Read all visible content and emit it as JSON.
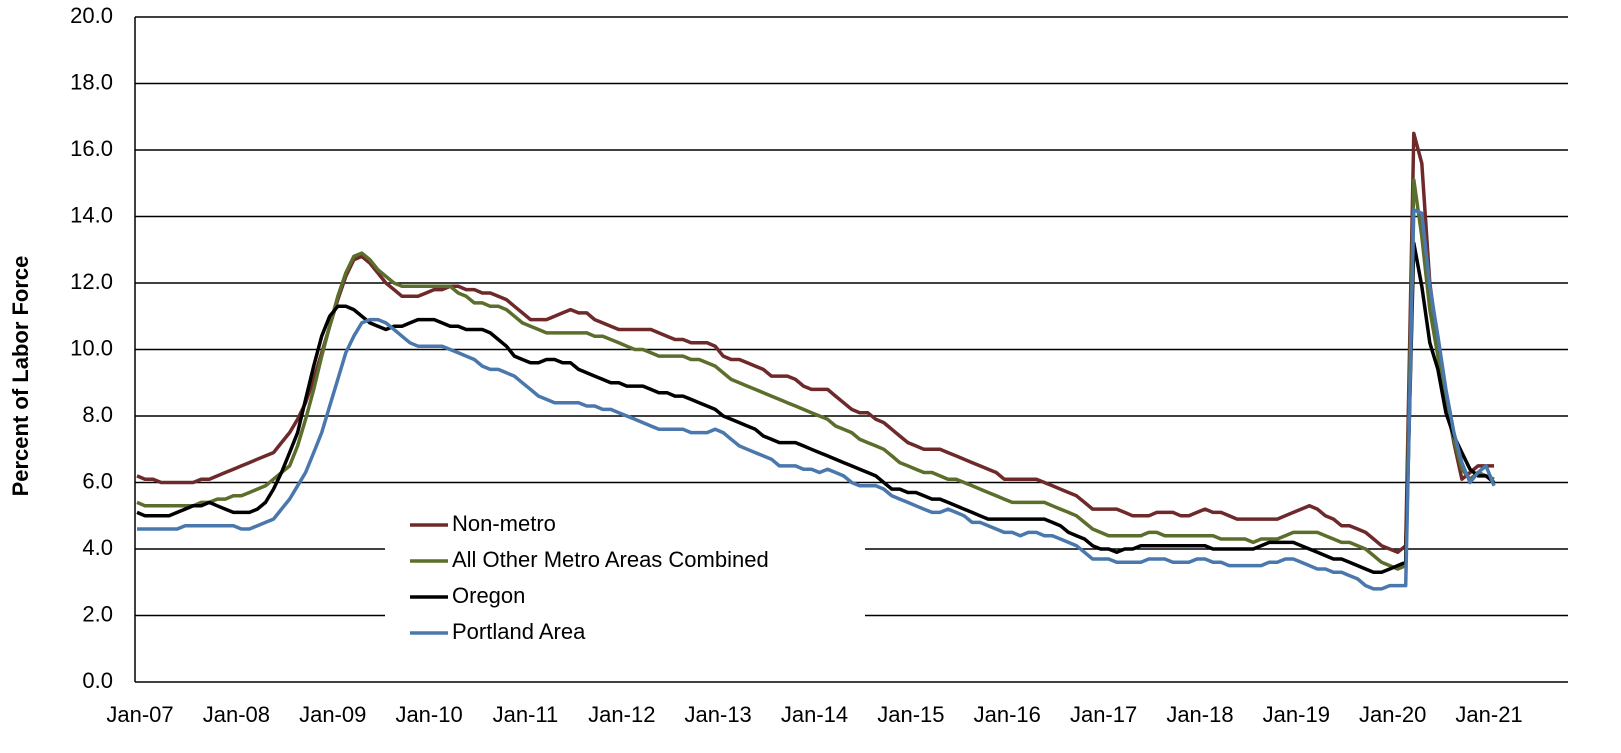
{
  "chart_data": {
    "type": "line",
    "y_label": "Percent of Labor Force",
    "categories": [
      "Jan-07",
      null,
      null,
      null,
      null,
      null,
      null,
      null,
      null,
      null,
      null,
      null,
      "Jan-08",
      null,
      null,
      null,
      null,
      null,
      null,
      null,
      null,
      null,
      null,
      null,
      "Jan-09",
      null,
      null,
      null,
      null,
      null,
      null,
      null,
      null,
      null,
      null,
      null,
      "Jan-10",
      null,
      null,
      null,
      null,
      null,
      null,
      null,
      null,
      null,
      null,
      null,
      "Jan-11",
      null,
      null,
      null,
      null,
      null,
      null,
      null,
      null,
      null,
      null,
      null,
      "Jan-12",
      null,
      null,
      null,
      null,
      null,
      null,
      null,
      null,
      null,
      null,
      null,
      "Jan-13",
      null,
      null,
      null,
      null,
      null,
      null,
      null,
      null,
      null,
      null,
      null,
      "Jan-14",
      null,
      null,
      null,
      null,
      null,
      null,
      null,
      null,
      null,
      null,
      null,
      "Jan-15",
      null,
      null,
      null,
      null,
      null,
      null,
      null,
      null,
      null,
      null,
      null,
      "Jan-16",
      null,
      null,
      null,
      null,
      null,
      null,
      null,
      null,
      null,
      null,
      null,
      "Jan-17",
      null,
      null,
      null,
      null,
      null,
      null,
      null,
      null,
      null,
      null,
      null,
      "Jan-18",
      null,
      null,
      null,
      null,
      null,
      null,
      null,
      null,
      null,
      null,
      null,
      "Jan-19",
      null,
      null,
      null,
      null,
      null,
      null,
      null,
      null,
      null,
      null,
      null,
      "Jan-20",
      null,
      null,
      null,
      null,
      null,
      null,
      null,
      null,
      null,
      null,
      null,
      "Jan-21",
      null
    ],
    "series": [
      {
        "name": "Non-metro",
        "color": "#6e2a2a",
        "values": [
          6.2,
          6.1,
          6.1,
          6.0,
          6.0,
          6.0,
          6.0,
          6.0,
          6.1,
          6.1,
          6.2,
          6.3,
          6.4,
          6.5,
          6.6,
          6.7,
          6.8,
          6.9,
          7.2,
          7.5,
          7.9,
          8.4,
          9.1,
          9.9,
          10.7,
          11.5,
          12.2,
          12.7,
          12.8,
          12.6,
          12.3,
          12.0,
          11.8,
          11.6,
          11.6,
          11.6,
          11.7,
          11.8,
          11.8,
          11.9,
          11.9,
          11.8,
          11.8,
          11.7,
          11.7,
          11.6,
          11.5,
          11.3,
          11.1,
          10.9,
          10.9,
          10.9,
          11.0,
          11.1,
          11.2,
          11.1,
          11.1,
          10.9,
          10.8,
          10.7,
          10.6,
          10.6,
          10.6,
          10.6,
          10.6,
          10.5,
          10.4,
          10.3,
          10.3,
          10.2,
          10.2,
          10.2,
          10.1,
          9.8,
          9.7,
          9.7,
          9.6,
          9.5,
          9.4,
          9.2,
          9.2,
          9.2,
          9.1,
          8.9,
          8.8,
          8.8,
          8.8,
          8.6,
          8.4,
          8.2,
          8.1,
          8.1,
          7.9,
          7.8,
          7.6,
          7.4,
          7.2,
          7.1,
          7.0,
          7.0,
          7.0,
          6.9,
          6.8,
          6.7,
          6.6,
          6.5,
          6.4,
          6.3,
          6.1,
          6.1,
          6.1,
          6.1,
          6.1,
          6.0,
          5.9,
          5.8,
          5.7,
          5.6,
          5.4,
          5.2,
          5.2,
          5.2,
          5.2,
          5.1,
          5.0,
          5.0,
          5.0,
          5.1,
          5.1,
          5.1,
          5.0,
          5.0,
          5.1,
          5.2,
          5.1,
          5.1,
          5.0,
          4.9,
          4.9,
          4.9,
          4.9,
          4.9,
          4.9,
          5.0,
          5.1,
          5.2,
          5.3,
          5.2,
          5.0,
          4.9,
          4.7,
          4.7,
          4.6,
          4.5,
          4.3,
          4.1,
          4.0,
          3.9,
          4.1,
          16.5,
          15.6,
          12.0,
          10.2,
          8.5,
          7.2,
          6.1,
          6.3,
          6.5,
          6.5,
          6.5
        ]
      },
      {
        "name": "All Other Metro Areas Combined",
        "color": "#5b6e2b",
        "values": [
          5.4,
          5.3,
          5.3,
          5.3,
          5.3,
          5.3,
          5.3,
          5.3,
          5.4,
          5.4,
          5.5,
          5.5,
          5.6,
          5.6,
          5.7,
          5.8,
          5.9,
          6.1,
          6.3,
          6.5,
          7.1,
          7.9,
          8.8,
          9.8,
          10.7,
          11.6,
          12.3,
          12.8,
          12.9,
          12.7,
          12.4,
          12.2,
          12.0,
          11.9,
          11.9,
          11.9,
          11.9,
          11.9,
          11.9,
          11.9,
          11.7,
          11.6,
          11.4,
          11.4,
          11.3,
          11.3,
          11.2,
          11.0,
          10.8,
          10.7,
          10.6,
          10.5,
          10.5,
          10.5,
          10.5,
          10.5,
          10.5,
          10.4,
          10.4,
          10.3,
          10.2,
          10.1,
          10.0,
          10.0,
          9.9,
          9.8,
          9.8,
          9.8,
          9.8,
          9.7,
          9.7,
          9.6,
          9.5,
          9.3,
          9.1,
          9.0,
          8.9,
          8.8,
          8.7,
          8.6,
          8.5,
          8.4,
          8.3,
          8.2,
          8.1,
          8.0,
          7.9,
          7.7,
          7.6,
          7.5,
          7.3,
          7.2,
          7.1,
          7.0,
          6.8,
          6.6,
          6.5,
          6.4,
          6.3,
          6.3,
          6.2,
          6.1,
          6.1,
          6.0,
          5.9,
          5.8,
          5.7,
          5.6,
          5.5,
          5.4,
          5.4,
          5.4,
          5.4,
          5.4,
          5.3,
          5.2,
          5.1,
          5.0,
          4.8,
          4.6,
          4.5,
          4.4,
          4.4,
          4.4,
          4.4,
          4.4,
          4.5,
          4.5,
          4.4,
          4.4,
          4.4,
          4.4,
          4.4,
          4.4,
          4.4,
          4.3,
          4.3,
          4.3,
          4.3,
          4.2,
          4.3,
          4.3,
          4.3,
          4.4,
          4.5,
          4.5,
          4.5,
          4.5,
          4.4,
          4.3,
          4.2,
          4.2,
          4.1,
          4.0,
          3.8,
          3.6,
          3.5,
          3.4,
          3.5,
          15.1,
          13.4,
          11.2,
          9.8,
          8.3,
          7.3,
          6.4,
          6.1,
          6.3,
          6.2,
          6.1
        ]
      },
      {
        "name": "Oregon",
        "color": "#000000",
        "values": [
          5.1,
          5.0,
          5.0,
          5.0,
          5.0,
          5.1,
          5.2,
          5.3,
          5.3,
          5.4,
          5.3,
          5.2,
          5.1,
          5.1,
          5.1,
          5.2,
          5.4,
          5.8,
          6.3,
          6.9,
          7.5,
          8.5,
          9.5,
          10.4,
          11.0,
          11.3,
          11.3,
          11.2,
          11.0,
          10.8,
          10.7,
          10.6,
          10.7,
          10.7,
          10.8,
          10.9,
          10.9,
          10.9,
          10.8,
          10.7,
          10.7,
          10.6,
          10.6,
          10.6,
          10.5,
          10.3,
          10.1,
          9.8,
          9.7,
          9.6,
          9.6,
          9.7,
          9.7,
          9.6,
          9.6,
          9.4,
          9.3,
          9.2,
          9.1,
          9.0,
          9.0,
          8.9,
          8.9,
          8.9,
          8.8,
          8.7,
          8.7,
          8.6,
          8.6,
          8.5,
          8.4,
          8.3,
          8.2,
          8.0,
          7.9,
          7.8,
          7.7,
          7.6,
          7.4,
          7.3,
          7.2,
          7.2,
          7.2,
          7.1,
          7.0,
          6.9,
          6.8,
          6.7,
          6.6,
          6.5,
          6.4,
          6.3,
          6.2,
          6.0,
          5.8,
          5.8,
          5.7,
          5.7,
          5.6,
          5.5,
          5.5,
          5.4,
          5.3,
          5.2,
          5.1,
          5.0,
          4.9,
          4.9,
          4.9,
          4.9,
          4.9,
          4.9,
          4.9,
          4.9,
          4.8,
          4.7,
          4.5,
          4.4,
          4.3,
          4.1,
          4.0,
          4.0,
          3.9,
          4.0,
          4.0,
          4.1,
          4.1,
          4.1,
          4.1,
          4.1,
          4.1,
          4.1,
          4.1,
          4.1,
          4.0,
          4.0,
          4.0,
          4.0,
          4.0,
          4.0,
          4.1,
          4.2,
          4.2,
          4.2,
          4.2,
          4.1,
          4.0,
          3.9,
          3.8,
          3.7,
          3.7,
          3.6,
          3.5,
          3.4,
          3.3,
          3.3,
          3.4,
          3.5,
          3.6,
          13.2,
          11.9,
          10.2,
          9.4,
          8.1,
          7.4,
          6.9,
          6.4,
          6.2,
          6.2,
          6.0
        ]
      },
      {
        "name": "Portland Area",
        "color": "#4a78ad",
        "values": [
          4.6,
          4.6,
          4.6,
          4.6,
          4.6,
          4.6,
          4.7,
          4.7,
          4.7,
          4.7,
          4.7,
          4.7,
          4.7,
          4.6,
          4.6,
          4.7,
          4.8,
          4.9,
          5.2,
          5.5,
          5.9,
          6.3,
          6.9,
          7.5,
          8.3,
          9.1,
          9.9,
          10.4,
          10.8,
          10.9,
          10.9,
          10.8,
          10.6,
          10.4,
          10.2,
          10.1,
          10.1,
          10.1,
          10.1,
          10.0,
          9.9,
          9.8,
          9.7,
          9.5,
          9.4,
          9.4,
          9.3,
          9.2,
          9.0,
          8.8,
          8.6,
          8.5,
          8.4,
          8.4,
          8.4,
          8.4,
          8.3,
          8.3,
          8.2,
          8.2,
          8.1,
          8.0,
          7.9,
          7.8,
          7.7,
          7.6,
          7.6,
          7.6,
          7.6,
          7.5,
          7.5,
          7.5,
          7.6,
          7.5,
          7.3,
          7.1,
          7.0,
          6.9,
          6.8,
          6.7,
          6.5,
          6.5,
          6.5,
          6.4,
          6.4,
          6.3,
          6.4,
          6.3,
          6.2,
          6.0,
          5.9,
          5.9,
          5.9,
          5.8,
          5.6,
          5.5,
          5.4,
          5.3,
          5.2,
          5.1,
          5.1,
          5.2,
          5.1,
          5.0,
          4.8,
          4.8,
          4.7,
          4.6,
          4.5,
          4.5,
          4.4,
          4.5,
          4.5,
          4.4,
          4.4,
          4.3,
          4.2,
          4.1,
          3.9,
          3.7,
          3.7,
          3.7,
          3.6,
          3.6,
          3.6,
          3.6,
          3.7,
          3.7,
          3.7,
          3.6,
          3.6,
          3.6,
          3.7,
          3.7,
          3.6,
          3.6,
          3.5,
          3.5,
          3.5,
          3.5,
          3.5,
          3.6,
          3.6,
          3.7,
          3.7,
          3.6,
          3.5,
          3.4,
          3.4,
          3.3,
          3.3,
          3.2,
          3.1,
          2.9,
          2.8,
          2.8,
          2.9,
          2.9,
          2.9,
          14.2,
          14.1,
          11.9,
          10.4,
          8.8,
          7.5,
          6.6,
          6.0,
          6.3,
          6.5,
          5.9
        ]
      }
    ],
    "ylim": [
      0,
      20
    ],
    "yticks": [
      {
        "value": 0,
        "label": "0.0"
      },
      {
        "value": 2,
        "label": "2.0"
      },
      {
        "value": 4,
        "label": "4.0"
      },
      {
        "value": 6,
        "label": "6.0"
      },
      {
        "value": 8,
        "label": "8.0"
      },
      {
        "value": 10,
        "label": "10.0"
      },
      {
        "value": 12,
        "label": "12.0"
      },
      {
        "value": 14,
        "label": "14.0"
      },
      {
        "value": 16,
        "label": "16.0"
      },
      {
        "value": 18,
        "label": "18.0"
      },
      {
        "value": 20,
        "label": "20.0"
      }
    ],
    "grid": true
  }
}
